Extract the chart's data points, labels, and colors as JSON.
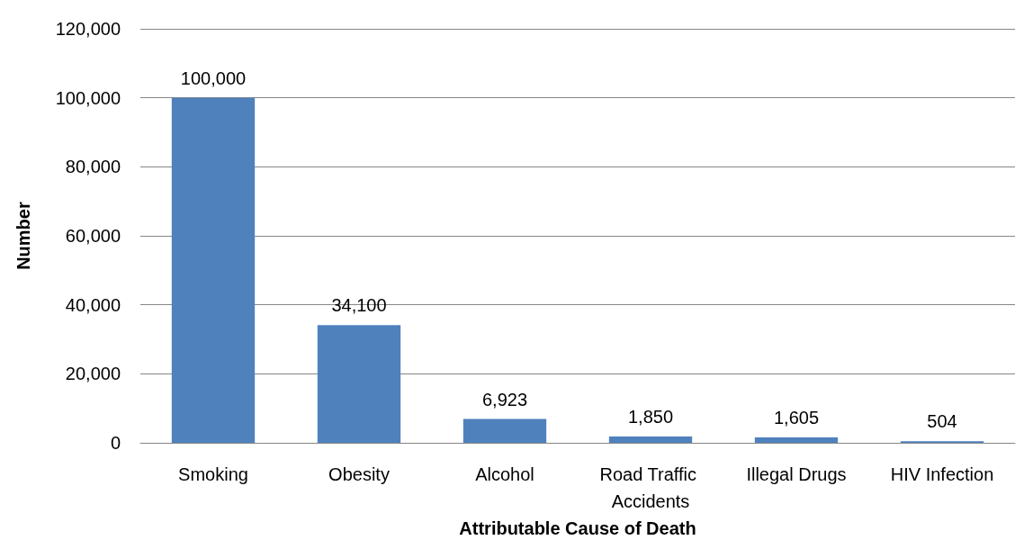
{
  "chart_data": {
    "type": "bar",
    "xlabel": "Attributable Cause of Death",
    "ylabel": "Number",
    "categories": [
      "Smoking",
      "Obesity",
      "Alcohol",
      "Road Traffic Accidents",
      "Illegal Drugs",
      "HIV Infection"
    ],
    "values": [
      100000,
      34100,
      6923,
      1850,
      1605,
      504
    ],
    "value_labels": [
      "100,000",
      "34,100",
      "6,923",
      "1,850",
      "1,605",
      "504"
    ],
    "color": "#4f81bd",
    "ylim": [
      0,
      120000
    ],
    "yticks": [
      {
        "value": 0,
        "label": "0"
      },
      {
        "value": 20000,
        "label": "20,000"
      },
      {
        "value": 40000,
        "label": "40,000"
      },
      {
        "value": 60000,
        "label": "60,000"
      },
      {
        "value": 80000,
        "label": "80,000"
      },
      {
        "value": 100000,
        "label": "100,000"
      },
      {
        "value": 120000,
        "label": "120,000"
      }
    ],
    "grid": "y"
  }
}
